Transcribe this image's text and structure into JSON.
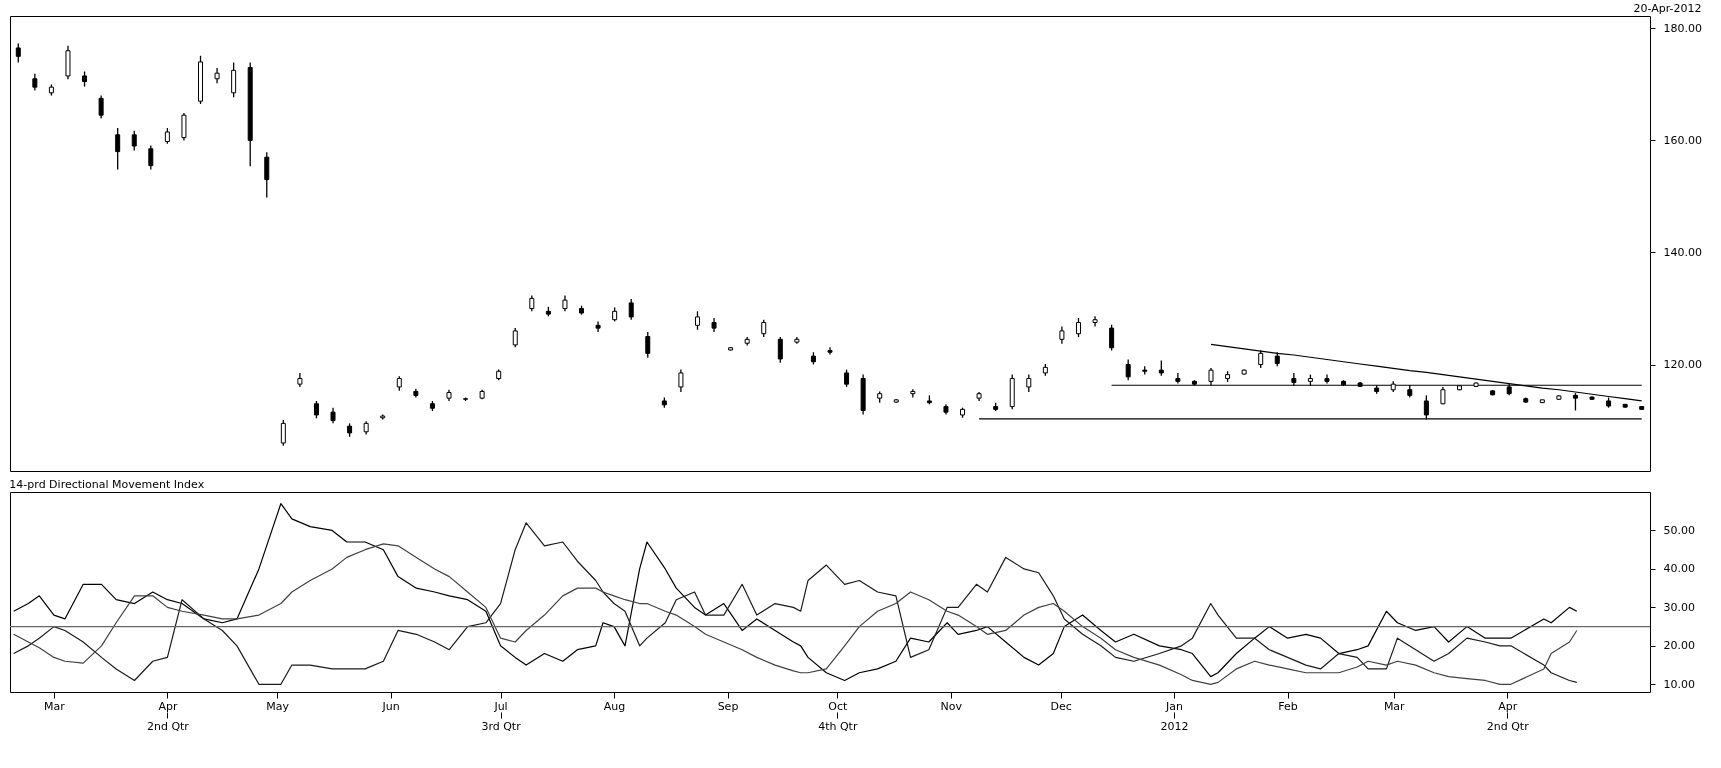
{
  "chart_data": [
    {
      "type": "candlestick",
      "subtitle": "20-Apr-2012",
      "categories": [
        null,
        null,
        null,
        null,
        null,
        null,
        null,
        null,
        null,
        null,
        null,
        null,
        null,
        null,
        null,
        null,
        null,
        null,
        null,
        null,
        null,
        null,
        null,
        null,
        null,
        null,
        null,
        null,
        null,
        null,
        null,
        null,
        null,
        null,
        null,
        null,
        null,
        null,
        null,
        null,
        null,
        null,
        null,
        null,
        null,
        null,
        null,
        null,
        null,
        null,
        null,
        null,
        null,
        null,
        null,
        null,
        null,
        null,
        null,
        null,
        null,
        null,
        null,
        null,
        null,
        null,
        null,
        null,
        null,
        null,
        null,
        null,
        null,
        null,
        null,
        null,
        null,
        null,
        null,
        null,
        null,
        null,
        null,
        null,
        null,
        null,
        null,
        null,
        null,
        null,
        null,
        null,
        null,
        null,
        null,
        null,
        null,
        null,
        null
      ],
      "ohlc": [
        [
          176.5,
          177.3,
          173.9,
          175
        ],
        [
          171,
          171.9,
          168.9,
          169.5
        ],
        [
          168.5,
          170,
          168,
          169.5
        ],
        [
          171.5,
          176.9,
          170.9,
          176
        ],
        [
          171.5,
          172.3,
          169.6,
          170.5
        ],
        [
          167.5,
          168,
          163.9,
          164.5
        ],
        [
          161,
          162.2,
          154.8,
          158
        ],
        [
          161,
          161.7,
          158.2,
          159
        ],
        [
          158.5,
          159.1,
          154.8,
          155.5
        ],
        [
          159.8,
          162.2,
          159.4,
          161.5
        ],
        [
          160.5,
          164.9,
          160,
          164.5
        ],
        [
          167,
          175.1,
          166.5,
          174
        ],
        [
          171,
          172.9,
          170.2,
          172
        ],
        [
          168.5,
          173.9,
          167.7,
          172.5
        ],
        [
          173,
          173.9,
          155.4,
          160
        ],
        [
          157,
          157.9,
          149.8,
          153
        ],
        [
          106,
          110.1,
          105.5,
          109.5
        ],
        [
          116.5,
          118.5,
          116,
          117.5
        ],
        [
          113,
          113.5,
          110.4,
          111
        ],
        [
          111.5,
          112.3,
          109.5,
          110
        ],
        [
          109,
          109.5,
          107.1,
          107.8
        ],
        [
          108,
          109.9,
          107.5,
          109.5
        ],
        [
          110.5,
          111.1,
          110.2,
          110.8
        ],
        [
          116,
          117.9,
          115.3,
          117.5
        ],
        [
          115.2,
          115.7,
          114.1,
          114.5
        ],
        [
          113,
          113.5,
          111.7,
          112.2
        ],
        [
          114,
          115.5,
          113.5,
          115
        ],
        [
          113.8,
          114.1,
          113.5,
          113.9
        ],
        [
          114,
          115.5,
          113.8,
          115.2
        ],
        [
          117.5,
          119.1,
          117.2,
          118.8
        ],
        [
          123.5,
          126.5,
          123.1,
          126
        ],
        [
          130,
          132.3,
          129.5,
          131.8
        ],
        [
          129.5,
          130.3,
          128.6,
          129
        ],
        [
          130,
          132.3,
          129.5,
          131.5
        ],
        [
          130,
          130.5,
          128.9,
          129.2
        ],
        [
          127,
          127.7,
          125.8,
          126.5
        ],
        [
          128,
          130.2,
          127.7,
          129.5
        ],
        [
          131,
          131.7,
          128,
          128.5
        ],
        [
          125,
          125.8,
          121.2,
          122
        ],
        [
          113.5,
          114.1,
          112.3,
          112.8
        ],
        [
          116,
          119.1,
          115.1,
          118.5
        ],
        [
          127,
          129.5,
          126.2,
          128.5
        ],
        [
          127.5,
          128.3,
          125.8,
          126.5
        ],
        [
          122.6,
          123.1,
          122.5,
          123
        ],
        [
          123.8,
          124.9,
          123.4,
          124.5
        ],
        [
          125.5,
          128,
          124.9,
          127.5
        ],
        [
          124.5,
          124.9,
          120.3,
          121
        ],
        [
          124,
          124.9,
          123.7,
          124.5
        ],
        [
          121.5,
          122.2,
          120,
          120.5
        ],
        [
          122.5,
          123.1,
          121.8,
          122.2
        ],
        [
          118.5,
          119.1,
          116,
          116.5
        ],
        [
          117.5,
          118.2,
          111.1,
          111.8
        ],
        [
          114,
          115.2,
          113.2,
          114.8
        ],
        [
          113.3,
          113.8,
          113.2,
          113.7
        ],
        [
          114.8,
          115.6,
          114.1,
          115.2
        ],
        [
          113.5,
          114.5,
          112.9,
          113.2
        ],
        [
          112.5,
          112.9,
          111.1,
          111.5
        ],
        [
          111,
          112.3,
          110.5,
          112
        ],
        [
          114,
          115.1,
          113.5,
          114.8
        ],
        [
          112.5,
          113.2,
          111.7,
          112
        ],
        [
          112.5,
          118.2,
          112,
          117.5
        ],
        [
          116,
          118.2,
          115.1,
          117.5
        ],
        [
          118.5,
          120.1,
          118,
          119.5
        ],
        [
          124.5,
          126.8,
          123.7,
          126
        ],
        [
          125.5,
          128.3,
          124.9,
          127.5
        ],
        [
          127.5,
          128.6,
          126.8,
          128
        ],
        [
          126.5,
          127.1,
          122.5,
          123
        ],
        [
          120,
          120.9,
          117.2,
          117.8
        ],
        [
          119,
          119.7,
          118.2,
          118.8
        ],
        [
          119,
          120.7,
          118,
          118.5
        ],
        [
          117.5,
          118.5,
          116.6,
          117
        ],
        [
          117,
          117.2,
          116.3,
          116.5
        ],
        [
          117,
          119.4,
          116.3,
          119
        ],
        [
          117.5,
          118.8,
          116.9,
          118.2
        ],
        [
          118.3,
          119.1,
          118.2,
          119
        ],
        [
          120,
          122.5,
          119.4,
          122
        ],
        [
          121.5,
          122.2,
          119.7,
          120.2
        ],
        [
          117.5,
          118.5,
          116.2,
          116.8
        ],
        [
          117,
          118.2,
          116.2,
          117.5
        ],
        [
          117.5,
          118.2,
          116.6,
          117
        ],
        [
          117,
          117.2,
          116.2,
          116.4
        ],
        [
          116.7,
          116.9,
          116,
          116.1
        ],
        [
          115.8,
          116.3,
          114.8,
          115.2
        ],
        [
          115.5,
          117,
          115.1,
          116.5
        ],
        [
          115.5,
          116.3,
          114.1,
          114.5
        ],
        [
          113.5,
          114.5,
          110.2,
          111
        ],
        [
          113,
          116,
          112.9,
          115.5
        ],
        [
          115.5,
          116.3,
          115.4,
          116.2
        ],
        [
          116.1,
          116.8,
          116,
          116.7
        ],
        [
          115.3,
          115.4,
          114.5,
          114.6
        ],
        [
          116,
          116.6,
          114.5,
          114.8
        ],
        [
          113.9,
          114.1,
          113.2,
          113.3
        ],
        [
          113.2,
          113.7,
          113.2,
          113.7
        ],
        [
          113.8,
          114.5,
          113.7,
          114.4
        ],
        [
          114.5,
          114.9,
          111.8,
          114
        ],
        [
          114.2,
          114.3,
          113.7,
          113.8
        ],
        [
          113.5,
          114.1,
          112.3,
          112.6
        ],
        [
          112.9,
          112.9,
          112.3,
          112.4
        ],
        [
          112.5,
          112.6,
          111.9,
          112
        ]
      ],
      "series": [
        {
          "type": "line",
          "color": "#000000",
          "values": [
            null,
            null,
            null,
            null,
            null,
            null,
            null,
            null,
            null,
            null,
            null,
            null,
            null,
            null,
            null,
            null,
            null,
            null,
            null,
            null,
            null,
            null,
            null,
            null,
            null,
            null,
            null,
            null,
            null,
            null,
            null,
            null,
            null,
            null,
            null,
            null,
            null,
            null,
            null,
            null,
            null,
            null,
            null,
            null,
            null,
            null,
            null,
            null,
            null,
            null,
            null,
            null,
            null,
            null,
            null,
            null,
            null,
            null,
            null,
            null,
            null,
            null,
            null,
            null,
            null,
            null,
            null,
            null,
            null,
            null,
            null,
            null,
            123.6,
            123.2,
            122.8,
            122.4,
            122.0,
            121.7,
            121.3,
            120.9,
            120.5,
            120.1,
            119.7,
            119.3,
            118.9,
            118.6,
            118.2,
            117.8,
            117.4,
            117.0,
            116.6,
            116.2,
            115.8,
            115.5,
            115.1,
            114.7,
            114.3,
            113.9,
            113.5
          ]
        },
        {
          "type": "line",
          "color": "#000000",
          "values": [
            null,
            null,
            null,
            null,
            null,
            null,
            null,
            null,
            null,
            null,
            null,
            null,
            null,
            null,
            null,
            null,
            null,
            null,
            null,
            null,
            null,
            null,
            null,
            null,
            null,
            null,
            null,
            null,
            null,
            null,
            null,
            null,
            null,
            null,
            null,
            null,
            null,
            null,
            null,
            null,
            null,
            null,
            null,
            null,
            null,
            null,
            null,
            null,
            null,
            null,
            null,
            null,
            null,
            null,
            null,
            null,
            null,
            null,
            null,
            null,
            null,
            null,
            null,
            null,
            null,
            null,
            116.3,
            116.3,
            116.3,
            116.3,
            116.3,
            116.3,
            116.3,
            116.3,
            116.3,
            116.3,
            116.3,
            116.3,
            116.3,
            116.3,
            116.3,
            116.3,
            116.3,
            116.3,
            116.3,
            116.3,
            116.3,
            116.3,
            116.3,
            116.3,
            116.3,
            116.3,
            116.3,
            116.3,
            116.3,
            116.3,
            116.3,
            116.3,
            116.3
          ]
        },
        {
          "type": "line",
          "color": "#000000",
          "values": [
            null,
            null,
            null,
            null,
            null,
            null,
            null,
            null,
            null,
            null,
            null,
            null,
            null,
            null,
            null,
            null,
            null,
            null,
            null,
            null,
            null,
            null,
            null,
            null,
            null,
            null,
            null,
            null,
            null,
            null,
            null,
            null,
            null,
            null,
            null,
            null,
            null,
            null,
            null,
            null,
            null,
            null,
            null,
            null,
            null,
            null,
            null,
            null,
            null,
            null,
            null,
            null,
            null,
            null,
            null,
            null,
            null,
            null,
            110.3,
            110.3,
            110.3,
            110.3,
            110.3,
            110.3,
            110.3,
            110.3,
            110.3,
            110.3,
            110.3,
            110.3,
            110.3,
            110.3,
            110.3,
            110.3,
            110.3,
            110.3,
            110.3,
            110.3,
            110.3,
            110.3,
            110.3,
            110.3,
            110.3,
            110.3,
            110.3,
            110.3,
            110.3,
            110.3,
            110.3,
            110.3,
            110.3,
            110.3,
            110.3,
            110.3,
            110.3,
            110.3,
            110.3,
            110.3,
            110.3
          ]
        }
      ],
      "ylim": [
        101,
        182.2
      ],
      "yticks": [
        {
          "value": 120,
          "label": "120.00"
        },
        {
          "value": 140,
          "label": "140.00"
        },
        {
          "value": 160,
          "label": "160.00"
        },
        {
          "value": 180,
          "label": "180.00"
        }
      ],
      "tick_labels": "y"
    },
    {
      "type": "line",
      "title": "14-prd Directional Movement Index",
      "x": [
        "2011-02-18",
        "2011-02-22",
        "2011-02-25",
        "2011-03-01",
        "2011-03-04",
        "2011-03-09",
        "2011-03-14",
        "2011-03-18",
        "2011-03-23",
        "2011-03-28",
        "2011-04-01",
        "2011-04-05",
        "2011-04-11",
        "2011-04-16",
        "2011-04-20",
        "2011-04-26",
        "2011-05-02",
        "2011-05-05",
        "2011-05-10",
        "2011-05-16",
        "2011-05-20",
        "2011-05-25",
        "2011-05-30",
        "2011-06-03",
        "2011-06-08",
        "2011-06-13",
        "2011-06-17",
        "2011-06-22",
        "2011-06-27",
        "2011-07-01",
        "2011-07-05",
        "2011-07-08",
        "2011-07-13",
        "2011-07-18",
        "2011-07-22",
        "2011-07-27",
        "2011-07-29",
        "2011-08-01",
        "2011-08-04",
        "2011-08-08",
        "2011-08-10",
        "2011-08-15",
        "2011-08-18",
        "2011-08-23",
        "2011-08-26",
        "2011-08-31",
        "2011-09-05",
        "2011-09-09",
        "2011-09-14",
        "2011-09-19",
        "2011-09-21",
        "2011-09-23",
        "2011-09-28",
        "2011-10-03",
        "2011-10-07",
        "2011-10-12",
        "2011-10-17",
        "2011-10-21",
        "2011-10-26",
        "2011-10-31",
        "2011-11-03",
        "2011-11-08",
        "2011-11-11",
        "2011-11-16",
        "2011-11-21",
        "2011-11-25",
        "2011-11-29",
        "2011-12-02",
        "2011-12-07",
        "2011-12-12",
        "2011-12-16",
        "2011-12-21",
        "2011-12-28",
        "2012-01-03",
        "2012-01-06",
        "2012-01-11",
        "2012-01-13",
        "2012-01-18",
        "2012-01-23",
        "2012-01-27",
        "2012-02-01",
        "2012-02-06",
        "2012-02-10",
        "2012-02-15",
        "2012-02-20",
        "2012-02-23",
        "2012-02-28",
        "2012-03-02",
        "2012-03-07",
        "2012-03-12",
        "2012-03-16",
        "2012-03-21",
        "2012-03-26",
        "2012-03-30",
        "2012-04-02",
        "2012-04-11",
        "2012-04-13",
        "2012-04-18",
        "2012-04-20"
      ],
      "series": [
        {
          "color": "#000000",
          "values": [
            29,
            31,
            33,
            28,
            27,
            36,
            36,
            32,
            31,
            34,
            32,
            31,
            27,
            26,
            27,
            40,
            57,
            53,
            51,
            50,
            47,
            47,
            45,
            38,
            35,
            34,
            33,
            32,
            29,
            20,
            17,
            15,
            18,
            16,
            19,
            20,
            26,
            25,
            20,
            40,
            47,
            40,
            35,
            30,
            28,
            31,
            24,
            27,
            24,
            21,
            20,
            17,
            13,
            11,
            13,
            14,
            16,
            22,
            21,
            26,
            23,
            24,
            25,
            21,
            17,
            15,
            18,
            25,
            28,
            24,
            21,
            23,
            20,
            19,
            18,
            12,
            13,
            18,
            22,
            25,
            22,
            23,
            22,
            18,
            19,
            20,
            29,
            26,
            24,
            25,
            21,
            25,
            22,
            22,
            22,
            27,
            26,
            30,
            29
          ]
        },
        {
          "color": "#1a1a1a",
          "values": [
            18,
            20,
            22,
            25,
            24,
            21,
            17,
            14,
            11,
            16,
            17,
            32,
            27,
            24,
            20,
            10,
            10,
            15,
            15,
            14,
            14,
            14,
            16,
            24,
            23,
            21,
            19,
            25,
            26,
            31,
            45,
            52,
            46,
            47,
            42,
            37,
            34,
            31,
            29,
            20,
            22,
            26,
            32,
            34,
            28,
            28,
            36,
            28,
            31,
            30,
            29,
            37,
            41,
            36,
            37,
            34,
            33,
            17,
            19,
            30,
            30,
            36,
            34,
            43,
            40,
            39,
            33,
            27,
            23,
            20,
            17,
            16,
            18,
            20,
            22,
            31,
            28,
            22,
            22,
            19,
            17,
            15,
            14,
            18,
            17,
            14,
            14,
            22,
            19,
            16,
            18,
            22,
            21,
            20,
            20,
            15,
            13,
            11,
            10.5
          ]
        },
        {
          "color": "#404040",
          "values": [
            23,
            21,
            19.5,
            17,
            16,
            15.5,
            20,
            26,
            33,
            33,
            30,
            29,
            28,
            27,
            27,
            28,
            31,
            34,
            37,
            40,
            43,
            45,
            46.5,
            46,
            43,
            40,
            38,
            34,
            30,
            22,
            21,
            24,
            28,
            33,
            35,
            35,
            34,
            33,
            32,
            31,
            31,
            29,
            28,
            25,
            23,
            21,
            19,
            17,
            15,
            13.5,
            13,
            13,
            14,
            20,
            25,
            29,
            31,
            34,
            32,
            29,
            28,
            25,
            23,
            24,
            28,
            30,
            31,
            29,
            25,
            22,
            19,
            17,
            15,
            12.5,
            11,
            10,
            10.5,
            14,
            16,
            15,
            14,
            13,
            13,
            13,
            14.5,
            16,
            15,
            16,
            15,
            13,
            12,
            11.5,
            11,
            10,
            10,
            14,
            18,
            21,
            24
          ]
        }
      ],
      "ref_lines": [
        {
          "axis": "y",
          "value": 25,
          "color": "#666666"
        }
      ],
      "xlim": [
        "2011-02-17",
        "2012-05-10"
      ],
      "xticks": [
        {
          "value": "2011-03-01",
          "label": "Mar"
        },
        {
          "value": "2011-04-01",
          "label": "Apr"
        },
        {
          "value": "2011-05-01",
          "label": "May"
        },
        {
          "value": "2011-06-01",
          "label": "Jun"
        },
        {
          "value": "2011-07-01",
          "label": "Jul"
        },
        {
          "value": "2011-08-01",
          "label": "Aug"
        },
        {
          "value": "2011-09-01",
          "label": "Sep"
        },
        {
          "value": "2011-10-01",
          "label": "Oct"
        },
        {
          "value": "2011-11-01",
          "label": "Nov"
        },
        {
          "value": "2011-12-01",
          "label": "Dec"
        },
        {
          "value": "2012-01-01",
          "label": "Jan"
        },
        {
          "value": "2012-02-01",
          "label": "Feb"
        },
        {
          "value": "2012-03-01",
          "label": "Mar"
        },
        {
          "value": "2012-04-01",
          "label": "Apr"
        }
      ],
      "x2lim": [
        "2011-02-17",
        "2012-05-10"
      ],
      "x2ticks": [
        {
          "value": "2011-04-01",
          "label": "2nd Qtr"
        },
        {
          "value": "2011-07-01",
          "label": "3rd Qtr"
        },
        {
          "value": "2011-10-01",
          "label": "4th Qtr"
        },
        {
          "value": "2012-01-01",
          "label": "2012"
        },
        {
          "value": "2012-04-01",
          "label": "2nd Qtr"
        }
      ],
      "ylim": [
        8,
        60
      ],
      "yticks": [
        {
          "value": 10,
          "label": "10.00"
        },
        {
          "value": 20,
          "label": "20.00"
        },
        {
          "value": 30,
          "label": "30.00"
        },
        {
          "value": 40,
          "label": "40.00"
        },
        {
          "value": 50,
          "label": "50.00"
        }
      ]
    }
  ]
}
